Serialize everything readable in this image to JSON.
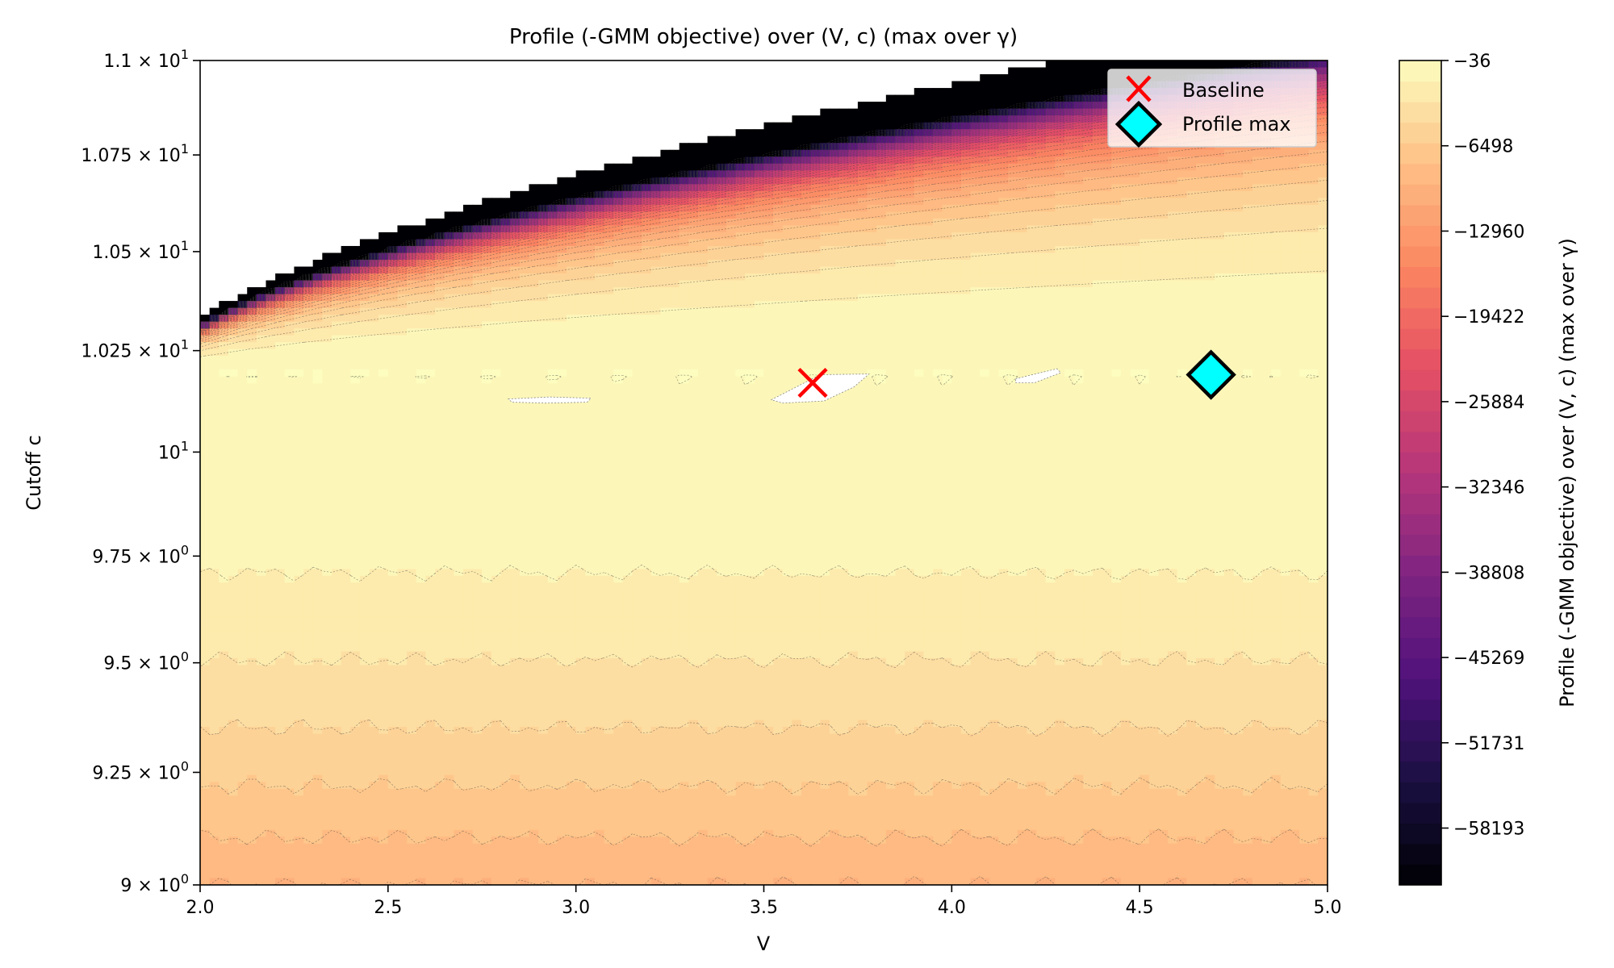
{
  "chart_data": {
    "type": "contour",
    "title": "Profile (-GMM objective) over (V, c) (max over γ)",
    "xlabel": "V",
    "ylabel": "Cutoff c",
    "xlim": [
      2.0,
      5.0
    ],
    "ylim": [
      9.0,
      11.0
    ],
    "yscale": "log",
    "x_ticks": [
      "2.0",
      "2.5",
      "3.0",
      "3.5",
      "4.0",
      "4.5",
      "5.0"
    ],
    "x_tick_values": [
      2.0,
      2.5,
      3.0,
      3.5,
      4.0,
      4.5,
      5.0
    ],
    "y_ticks": [
      {
        "value": 9.0,
        "mant": "9",
        "exp": "0"
      },
      {
        "value": 9.25,
        "mant": "9.25",
        "exp": "0"
      },
      {
        "value": 9.5,
        "mant": "9.5",
        "exp": "0"
      },
      {
        "value": 9.75,
        "mant": "9.75",
        "exp": "0"
      },
      {
        "value": 10.0,
        "mant": "10",
        "exp": "1"
      },
      {
        "value": 10.25,
        "mant": "1.025",
        "exp": "1"
      },
      {
        "value": 10.5,
        "mant": "1.05",
        "exp": "1"
      },
      {
        "value": 10.75,
        "mant": "1.075",
        "exp": "1"
      },
      {
        "value": 11.0,
        "mant": "1.1",
        "exp": "1"
      }
    ],
    "colorbar": {
      "label": "Profile (-GMM objective) over (V, c) (max over γ)",
      "min": -62500,
      "max": -36,
      "ticks": [
        -36,
        -6498,
        -12960,
        -19422,
        -25884,
        -32346,
        -38808,
        -45269,
        -51731,
        -58193
      ],
      "tick_labels": [
        "−36",
        "−6498",
        "−12960",
        "−19422",
        "−25884",
        "−32346",
        "−38808",
        "−45269",
        "−51731",
        "−58193"
      ],
      "colormap": "magma",
      "levels": 40
    },
    "markers": [
      {
        "name": "Baseline",
        "x": 3.63,
        "y": 10.17,
        "symbol": "x",
        "color": "#ff0000"
      },
      {
        "name": "Profile max",
        "x": 4.69,
        "y": 10.19,
        "symbol": "diamond",
        "color": "#00ffff"
      }
    ],
    "legend": {
      "location": "upper right",
      "entries": [
        "Baseline",
        "Profile max"
      ]
    }
  }
}
